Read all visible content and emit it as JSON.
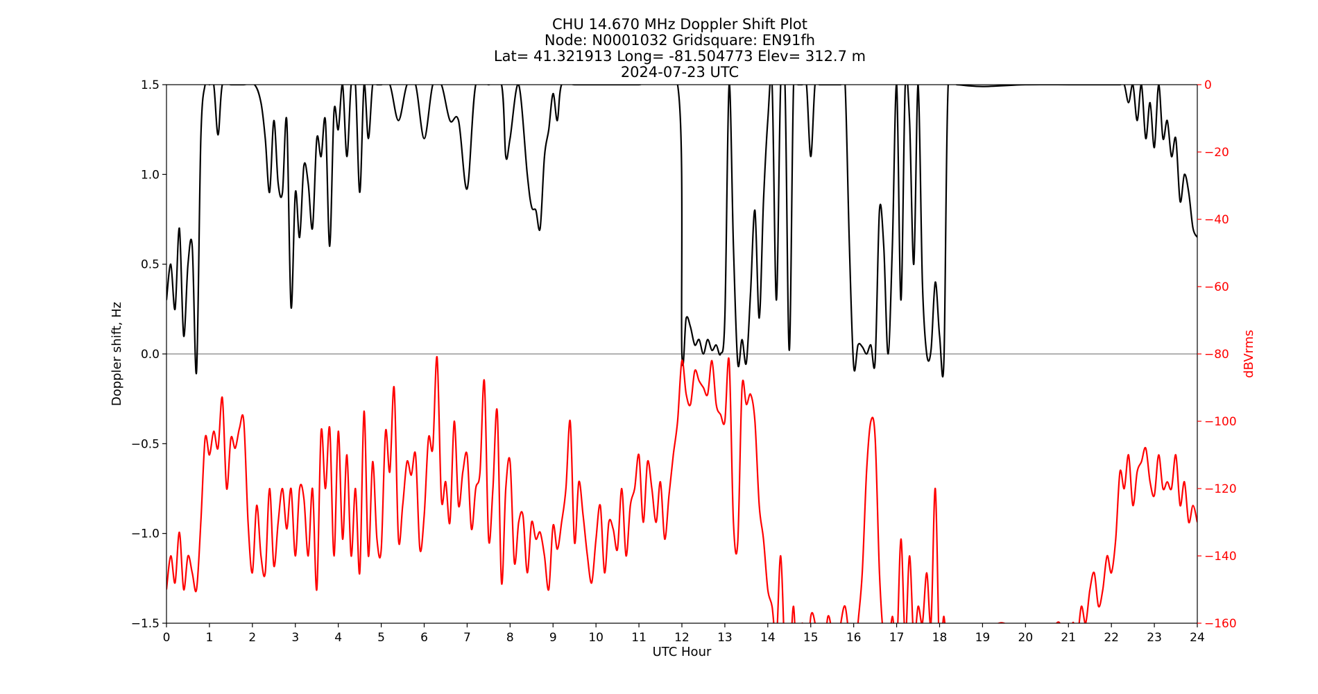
{
  "chart_data": {
    "type": "line",
    "title_lines": [
      "CHU 14.670 MHz Doppler Shift Plot",
      "Node:  N0001032     Gridsquare:  EN91fh",
      "Lat= 41.321913    Long= -81.504773    Elev= 312.7 m",
      "2024-07-23  UTC"
    ],
    "xlabel": "UTC Hour",
    "ylabel_left": "Doppler shift, Hz",
    "ylabel_right": "dBVrms",
    "xlim": [
      0,
      24
    ],
    "ylim_left": [
      -1.5,
      1.5
    ],
    "ylim_right": [
      -160,
      0
    ],
    "x_ticks": [
      "0",
      "1",
      "2",
      "3",
      "4",
      "5",
      "6",
      "7",
      "8",
      "9",
      "10",
      "11",
      "12",
      "13",
      "14",
      "15",
      "16",
      "17",
      "18",
      "19",
      "20",
      "21",
      "22",
      "23",
      "24"
    ],
    "y_ticks_left": [
      "1.5",
      "1.0",
      "0.5",
      "0.0",
      "−0.5",
      "−1.0",
      "−1.5"
    ],
    "y_ticks_right": [
      "0",
      "−20",
      "−40",
      "−60",
      "−80",
      "−100",
      "−120",
      "−140",
      "−160"
    ],
    "zero_line_color": "#999999",
    "right_axis_color": "#ff0000",
    "series": [
      {
        "axis": "left",
        "color": "#000000",
        "x": [
          0,
          0.1,
          0.2,
          0.3,
          0.4,
          0.5,
          0.6,
          0.7,
          0.8,
          0.9,
          1.0,
          1.1,
          1.2,
          1.3,
          1.5,
          1.8,
          2.05,
          2.2,
          2.3,
          2.4,
          2.5,
          2.6,
          2.7,
          2.8,
          2.9,
          3.0,
          3.1,
          3.2,
          3.3,
          3.4,
          3.5,
          3.6,
          3.7,
          3.8,
          3.9,
          4.0,
          4.1,
          4.2,
          4.3,
          4.4,
          4.5,
          4.6,
          4.7,
          4.8,
          4.9,
          5.0,
          5.2,
          5.4,
          5.6,
          5.8,
          6.0,
          6.2,
          6.4,
          6.6,
          6.8,
          7.0,
          7.2,
          7.5,
          7.8,
          7.9,
          8.0,
          8.2,
          8.4,
          8.5,
          8.6,
          8.7,
          8.8,
          8.9,
          9.0,
          9.1,
          9.2,
          9.5,
          10.0,
          11.0,
          11.9,
          12.0,
          12.1,
          12.2,
          12.3,
          12.4,
          12.5,
          12.6,
          12.7,
          12.8,
          12.9,
          13.0,
          13.1,
          13.2,
          13.3,
          13.4,
          13.5,
          13.6,
          13.7,
          13.8,
          13.9,
          14.0,
          14.1,
          14.2,
          14.3,
          14.4,
          14.5,
          14.6,
          14.7,
          14.8,
          14.9,
          15.0,
          15.1,
          15.2,
          15.3,
          15.4,
          15.5,
          15.6,
          15.7,
          15.8,
          15.9,
          16.0,
          16.1,
          16.2,
          16.3,
          16.4,
          16.5,
          16.6,
          16.7,
          16.8,
          16.9,
          17.0,
          17.1,
          17.2,
          17.3,
          17.4,
          17.5,
          17.6,
          17.7,
          17.8,
          17.9,
          18.0,
          18.1,
          18.2,
          18.4,
          19.0,
          20.0,
          21.0,
          22.0,
          22.2,
          22.3,
          22.4,
          22.5,
          22.6,
          22.7,
          22.8,
          22.9,
          23.0,
          23.1,
          23.2,
          23.3,
          23.4,
          23.5,
          23.6,
          23.7,
          23.8,
          23.9,
          24.0
        ],
        "values": [
          0.3,
          0.5,
          0.25,
          0.7,
          0.1,
          0.5,
          0.6,
          -0.1,
          1.2,
          1.5,
          1.5,
          1.5,
          1.22,
          1.5,
          1.5,
          1.5,
          1.5,
          1.4,
          1.2,
          0.9,
          1.3,
          0.95,
          0.9,
          1.3,
          0.26,
          0.9,
          0.65,
          1.05,
          0.95,
          0.7,
          1.2,
          1.1,
          1.3,
          0.6,
          1.35,
          1.25,
          1.5,
          1.1,
          1.5,
          1.5,
          0.9,
          1.5,
          1.2,
          1.5,
          1.5,
          1.5,
          1.5,
          1.3,
          1.5,
          1.5,
          1.2,
          1.5,
          1.5,
          1.3,
          1.3,
          0.92,
          1.5,
          1.5,
          1.5,
          1.1,
          1.2,
          1.5,
          1.0,
          0.82,
          0.8,
          0.7,
          1.1,
          1.25,
          1.45,
          1.3,
          1.5,
          1.5,
          1.5,
          1.5,
          1.5,
          0.0,
          0.2,
          0.15,
          0.05,
          0.08,
          0.0,
          0.08,
          0.02,
          0.05,
          0.0,
          0.2,
          1.5,
          0.6,
          -0.05,
          0.08,
          -0.05,
          0.35,
          0.8,
          0.2,
          0.85,
          1.3,
          1.5,
          0.3,
          1.5,
          1.5,
          0.02,
          1.5,
          1.5,
          1.5,
          1.5,
          1.1,
          1.5,
          1.5,
          1.5,
          1.5,
          1.5,
          1.5,
          1.5,
          1.5,
          0.6,
          -0.07,
          0.05,
          0.04,
          0.0,
          0.05,
          -0.04,
          0.8,
          0.6,
          0.0,
          0.6,
          1.5,
          0.3,
          1.5,
          1.3,
          0.5,
          1.5,
          0.4,
          0.0,
          0.02,
          0.4,
          0.1,
          -0.04,
          1.5,
          1.5,
          1.49,
          1.5,
          1.5,
          1.5,
          1.5,
          1.5,
          1.4,
          1.5,
          1.3,
          1.5,
          1.2,
          1.4,
          1.15,
          1.5,
          1.2,
          1.3,
          1.1,
          1.2,
          0.85,
          1.0,
          0.9,
          0.7,
          0.65
        ]
      },
      {
        "axis": "right",
        "color": "#ff0000",
        "x": [
          0,
          0.1,
          0.2,
          0.3,
          0.4,
          0.5,
          0.6,
          0.7,
          0.8,
          0.9,
          1.0,
          1.1,
          1.2,
          1.3,
          1.4,
          1.5,
          1.6,
          1.7,
          1.8,
          1.9,
          2.0,
          2.1,
          2.2,
          2.3,
          2.4,
          2.5,
          2.6,
          2.7,
          2.8,
          2.9,
          3.0,
          3.1,
          3.2,
          3.3,
          3.4,
          3.5,
          3.6,
          3.7,
          3.8,
          3.9,
          4.0,
          4.1,
          4.2,
          4.3,
          4.4,
          4.5,
          4.6,
          4.7,
          4.8,
          4.9,
          5.0,
          5.1,
          5.2,
          5.3,
          5.4,
          5.5,
          5.6,
          5.7,
          5.8,
          5.9,
          6.0,
          6.1,
          6.2,
          6.3,
          6.4,
          6.5,
          6.6,
          6.7,
          6.8,
          6.9,
          7.0,
          7.1,
          7.2,
          7.3,
          7.4,
          7.5,
          7.6,
          7.7,
          7.8,
          7.9,
          8.0,
          8.1,
          8.2,
          8.3,
          8.4,
          8.5,
          8.6,
          8.7,
          8.8,
          8.9,
          9.0,
          9.1,
          9.2,
          9.3,
          9.4,
          9.5,
          9.6,
          9.7,
          9.8,
          9.9,
          10.0,
          10.1,
          10.2,
          10.3,
          10.4,
          10.5,
          10.6,
          10.7,
          10.8,
          10.9,
          11.0,
          11.1,
          11.2,
          11.3,
          11.4,
          11.5,
          11.6,
          11.7,
          11.8,
          11.9,
          12.0,
          12.1,
          12.2,
          12.3,
          12.4,
          12.5,
          12.6,
          12.7,
          12.8,
          12.9,
          13.0,
          13.1,
          13.2,
          13.3,
          13.4,
          13.5,
          13.6,
          13.7,
          13.8,
          13.9,
          14.0,
          14.1,
          14.2,
          14.3,
          14.4,
          14.5,
          14.6,
          14.7,
          14.8,
          14.9,
          15.0,
          15.1,
          15.2,
          15.3,
          15.4,
          15.5,
          15.6,
          15.7,
          15.8,
          15.9,
          16.0,
          16.1,
          16.2,
          16.3,
          16.4,
          16.5,
          16.6,
          16.7,
          16.8,
          16.9,
          17.0,
          17.1,
          17.2,
          17.3,
          17.4,
          17.5,
          17.6,
          17.7,
          17.8,
          17.9,
          18.0,
          18.1,
          18.2,
          18.3,
          18.4,
          18.5,
          19.0,
          19.5,
          20.0,
          20.5,
          20.8,
          21.0,
          21.1,
          21.2,
          21.3,
          21.4,
          21.5,
          21.6,
          21.7,
          21.8,
          21.9,
          22.0,
          22.1,
          22.2,
          22.3,
          22.4,
          22.5,
          22.6,
          22.7,
          22.8,
          22.9,
          23.0,
          23.1,
          23.2,
          23.3,
          23.4,
          23.5,
          23.6,
          23.7,
          23.8,
          23.9,
          24.0
        ],
        "values": [
          -150,
          -140,
          -148,
          -133,
          -150,
          -140,
          -145,
          -150,
          -130,
          -105,
          -110,
          -103,
          -108,
          -93,
          -120,
          -105,
          -108,
          -102,
          -100,
          -130,
          -145,
          -125,
          -140,
          -145,
          -120,
          -143,
          -130,
          -120,
          -132,
          -120,
          -140,
          -120,
          -123,
          -140,
          -120,
          -150,
          -103,
          -120,
          -102,
          -140,
          -103,
          -135,
          -110,
          -140,
          -120,
          -145,
          -97,
          -140,
          -112,
          -135,
          -138,
          -103,
          -115,
          -90,
          -135,
          -125,
          -112,
          -116,
          -110,
          -138,
          -128,
          -105,
          -108,
          -81,
          -123,
          -118,
          -130,
          -100,
          -125,
          -115,
          -110,
          -132,
          -120,
          -115,
          -88,
          -135,
          -120,
          -97,
          -148,
          -120,
          -112,
          -142,
          -130,
          -128,
          -145,
          -130,
          -135,
          -133,
          -140,
          -150,
          -131,
          -138,
          -130,
          -120,
          -100,
          -136,
          -118,
          -128,
          -140,
          -148,
          -135,
          -125,
          -145,
          -130,
          -132,
          -138,
          -120,
          -140,
          -125,
          -120,
          -110,
          -130,
          -112,
          -120,
          -130,
          -118,
          -135,
          -122,
          -110,
          -100,
          -82,
          -92,
          -95,
          -85,
          -88,
          -90,
          -92,
          -82,
          -95,
          -98,
          -100,
          -82,
          -130,
          -136,
          -90,
          -95,
          -92,
          -100,
          -125,
          -135,
          -150,
          -155,
          -165,
          -140,
          -170,
          -175,
          -155,
          -180,
          -160,
          -175,
          -158,
          -160,
          -172,
          -170,
          -158,
          -163,
          -170,
          -160,
          -155,
          -165,
          -175,
          -160,
          -145,
          -115,
          -100,
          -105,
          -145,
          -165,
          -170,
          -158,
          -168,
          -135,
          -165,
          -140,
          -165,
          -155,
          -160,
          -145,
          -160,
          -120,
          -170,
          -158,
          -175,
          -180,
          -170,
          -178,
          -165,
          -160,
          -170,
          -165,
          -160,
          -175,
          -160,
          -165,
          -155,
          -160,
          -150,
          -145,
          -155,
          -150,
          -140,
          -145,
          -135,
          -115,
          -120,
          -110,
          -125,
          -115,
          -112,
          -108,
          -118,
          -122,
          -110,
          -120,
          -118,
          -120,
          -110,
          -125,
          -118,
          -130,
          -125,
          -130
        ]
      }
    ]
  }
}
